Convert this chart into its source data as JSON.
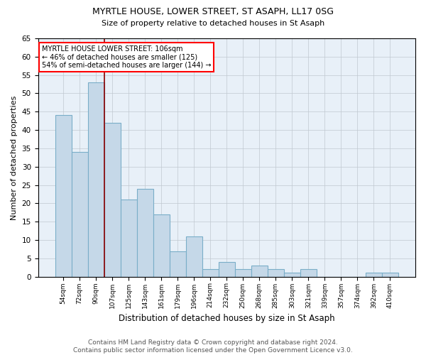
{
  "title1": "MYRTLE HOUSE, LOWER STREET, ST ASAPH, LL17 0SG",
  "title2": "Size of property relative to detached houses in St Asaph",
  "xlabel": "Distribution of detached houses by size in St Asaph",
  "ylabel": "Number of detached properties",
  "categories": [
    "54sqm",
    "72sqm",
    "90sqm",
    "107sqm",
    "125sqm",
    "143sqm",
    "161sqm",
    "179sqm",
    "196sqm",
    "214sqm",
    "232sqm",
    "250sqm",
    "268sqm",
    "285sqm",
    "303sqm",
    "321sqm",
    "339sqm",
    "357sqm",
    "374sqm",
    "392sqm",
    "410sqm"
  ],
  "values": [
    44,
    34,
    53,
    42,
    21,
    24,
    17,
    7,
    11,
    2,
    4,
    2,
    3,
    2,
    1,
    2,
    0,
    0,
    0,
    1,
    1
  ],
  "bar_color": "#c5d8e8",
  "bar_edge_color": "#7aaec8",
  "vline_x_index": 3,
  "vline_color": "#8b0000",
  "annotation_line1": "MYRTLE HOUSE LOWER STREET: 106sqm",
  "annotation_line2": "← 46% of detached houses are smaller (125)",
  "annotation_line3": "54% of semi-detached houses are larger (144) →",
  "annotation_box_color": "white",
  "annotation_box_edge_color": "red",
  "ylim": [
    0,
    65
  ],
  "yticks": [
    0,
    5,
    10,
    15,
    20,
    25,
    30,
    35,
    40,
    45,
    50,
    55,
    60,
    65
  ],
  "bg_color": "#ffffff",
  "plot_bg_color": "#e8f0f8",
  "grid_color": "#c0c8d0",
  "footer": "Contains HM Land Registry data © Crown copyright and database right 2024.\nContains public sector information licensed under the Open Government Licence v3.0."
}
